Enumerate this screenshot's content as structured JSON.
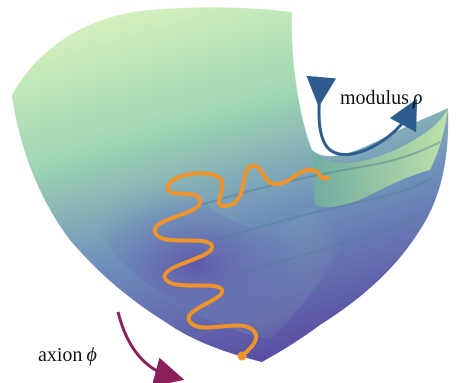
{
  "labels": {
    "modulus_word": "modulus",
    "modulus_symbol": "ρ",
    "axion_word": "axion",
    "axion_symbol": "ϕ"
  },
  "colors": {
    "surface_top": "#d4f0b8",
    "surface_mid": "#7fbfa6",
    "surface_deep": "#5a58a8",
    "surface_edge": "#3f7a73",
    "trajectory": "#f0932b",
    "modulus_arrow": "#2d5d8f",
    "axion_arrow": "#8a1f5c"
  }
}
